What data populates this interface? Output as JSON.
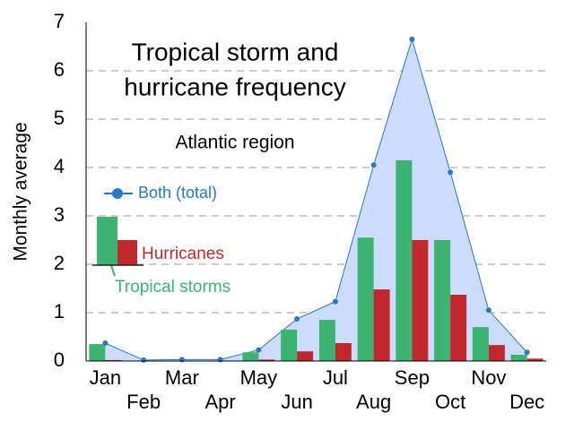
{
  "chart_data": {
    "type": "bar_line",
    "title_lines": [
      "Tropical storm and",
      "hurricane frequency"
    ],
    "subtitle": "Atlantic region",
    "y_label": "Monthly average",
    "categories": [
      "Jan",
      "Feb",
      "Mar",
      "Apr",
      "May",
      "Jun",
      "Jul",
      "Aug",
      "Sep",
      "Oct",
      "Nov",
      "Dec"
    ],
    "series": [
      {
        "name": "Tropical storms",
        "color": "#3cb371",
        "kind": "bar",
        "values": [
          0.35,
          0,
          0,
          0,
          0.18,
          0.65,
          0.85,
          2.55,
          4.15,
          2.5,
          0.7,
          0.13
        ]
      },
      {
        "name": "Hurricanes",
        "color": "#c0282d",
        "kind": "bar",
        "values": [
          0.02,
          0,
          0,
          0,
          0.03,
          0.2,
          0.37,
          1.48,
          2.5,
          1.37,
          0.33,
          0.05
        ]
      },
      {
        "name": "Both (total)",
        "color": "#2a78c2",
        "fill": "#ccdcff",
        "kind": "area",
        "values": [
          0.37,
          0.02,
          0.03,
          0.03,
          0.23,
          0.87,
          1.23,
          4.05,
          6.65,
          3.9,
          1.05,
          0.18
        ]
      }
    ],
    "ylim": [
      0,
      7
    ],
    "yticks": [
      0,
      1,
      2,
      3,
      4,
      5,
      6,
      7
    ],
    "grid": true
  }
}
